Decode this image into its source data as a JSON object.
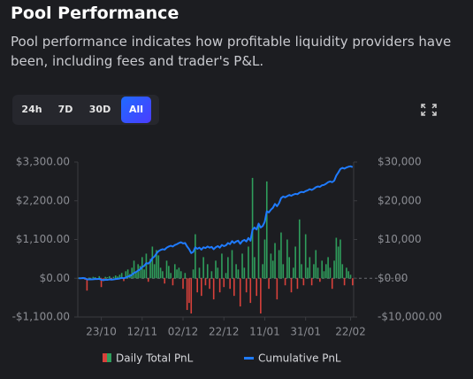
{
  "chart_data": {
    "type": "bar-line",
    "title": "Pool Performance",
    "subtitle": "Pool performance indicates how profitable liquidity providers have been, including fees and trader's P&L.",
    "ranges": [
      "24h",
      "7D",
      "30D",
      "All"
    ],
    "active_range": "All",
    "categories": [
      null,
      null,
      null,
      null,
      null,
      null,
      null,
      null,
      null,
      null,
      null,
      "23/10",
      null,
      null,
      null,
      null,
      null,
      null,
      null,
      null,
      null,
      null,
      null,
      null,
      null,
      null,
      null,
      null,
      null,
      null,
      null,
      "12/11",
      null,
      null,
      null,
      null,
      null,
      null,
      null,
      null,
      null,
      null,
      null,
      null,
      null,
      null,
      null,
      null,
      null,
      null,
      null,
      "02/12",
      null,
      null,
      null,
      null,
      null,
      null,
      null,
      null,
      null,
      null,
      null,
      null,
      null,
      null,
      null,
      null,
      null,
      null,
      null,
      "22/12",
      null,
      null,
      null,
      null,
      null,
      null,
      null,
      null,
      null,
      null,
      null,
      null,
      null,
      null,
      null,
      null,
      null,
      null,
      null,
      "11/01",
      null,
      null,
      null,
      null,
      null,
      null,
      null,
      null,
      null,
      null,
      null,
      null,
      null,
      null,
      null,
      null,
      null,
      null,
      null,
      "31/01",
      null,
      null,
      null,
      null,
      null,
      null,
      null,
      null,
      null,
      null,
      null,
      null,
      null,
      null,
      null,
      null,
      null,
      null,
      null,
      null,
      null,
      "22/02",
      null
    ],
    "series": [
      {
        "name": "Daily Total PnL",
        "color": "#2f9e5c",
        "negative_color": "#d8413b",
        "axis": "y",
        "values": [
          20,
          10,
          30,
          -40,
          -350,
          20,
          10,
          40,
          30,
          -20,
          60,
          -250,
          -80,
          40,
          30,
          60,
          -60,
          40,
          80,
          50,
          100,
          150,
          -80,
          200,
          250,
          120,
          300,
          500,
          200,
          400,
          350,
          600,
          250,
          700,
          -100,
          550,
          900,
          400,
          800,
          650,
          300,
          200,
          -150,
          500,
          350,
          150,
          -200,
          400,
          250,
          300,
          200,
          -300,
          150,
          -900,
          -700,
          -1000,
          250,
          1250,
          -400,
          300,
          -500,
          600,
          -200,
          400,
          -300,
          200,
          -600,
          500,
          300,
          -400,
          700,
          -250,
          150,
          600,
          -300,
          800,
          -500,
          400,
          250,
          -800,
          700,
          300,
          -400,
          900,
          -700,
          2850,
          600,
          -500,
          1500,
          -1000,
          400,
          1100,
          2750,
          -300,
          700,
          500,
          1000,
          -600,
          800,
          1300,
          400,
          -200,
          1100,
          600,
          -400,
          300,
          900,
          -300,
          1670,
          400,
          -200,
          1250,
          300,
          600,
          -200,
          400,
          800,
          300,
          -100,
          500,
          200,
          400,
          600,
          300,
          -300,
          500,
          1150,
          900,
          1100,
          400,
          -200,
          300,
          200,
          100,
          -200
        ]
      },
      {
        "name": "Cumulative PnL",
        "color": "#1f7bff",
        "axis": "y2",
        "values": [
          0,
          0,
          50,
          0,
          -300,
          -300,
          -300,
          -250,
          -200,
          -200,
          -150,
          -400,
          -450,
          -400,
          -400,
          -300,
          -350,
          -300,
          -200,
          -150,
          -50,
          100,
          0,
          200,
          450,
          600,
          900,
          1400,
          1600,
          2000,
          2300,
          2900,
          3200,
          3900,
          3800,
          4300,
          5200,
          5600,
          6400,
          7000,
          7300,
          7500,
          7400,
          7900,
          8200,
          8400,
          8200,
          8600,
          8800,
          9100,
          9300,
          9000,
          9100,
          8200,
          7500,
          6500,
          6800,
          8000,
          7600,
          7900,
          7400,
          8000,
          7800,
          8200,
          7900,
          8100,
          7500,
          8000,
          8300,
          7900,
          8600,
          8300,
          8500,
          9100,
          8800,
          9600,
          9100,
          9500,
          9700,
          8900,
          9600,
          9900,
          9500,
          10400,
          9700,
          12500,
          13100,
          12600,
          14100,
          13100,
          13500,
          14600,
          17300,
          17000,
          17700,
          18200,
          19200,
          18600,
          19400,
          20700,
          21100,
          20900,
          21200,
          21500,
          21300,
          21600,
          21800,
          21700,
          22100,
          22300,
          22200,
          22500,
          22700,
          23000,
          22800,
          23100,
          23500,
          23700,
          23600,
          24000,
          24100,
          24400,
          24800,
          25000,
          24800,
          25200,
          26500,
          27300,
          28200,
          28500,
          28300,
          28600,
          28800,
          28900,
          28700
        ]
      }
    ],
    "ylim": [
      -1100,
      3300
    ],
    "yticks": [
      {
        "value": -1100,
        "label": "-$1,100.00"
      },
      {
        "value": 0,
        "label": "$0.00"
      },
      {
        "value": 1100,
        "label": "$1,100.00"
      },
      {
        "value": 2200,
        "label": "$2,200.00"
      },
      {
        "value": 3300,
        "label": "$3,300.00"
      }
    ],
    "y2lim": [
      -10000,
      30000
    ],
    "y2ticks": [
      {
        "value": -10000,
        "label": "-$10,000.00"
      },
      {
        "value": 0,
        "label": "$0.00"
      },
      {
        "value": 10000,
        "label": "$10,000"
      },
      {
        "value": 20000,
        "label": "$20,000"
      },
      {
        "value": 30000,
        "label": "$30,000"
      }
    ],
    "grid": false
  }
}
